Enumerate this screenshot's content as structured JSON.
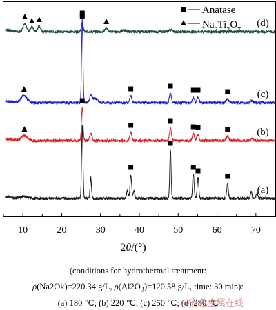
{
  "chart_data": {
    "type": "line",
    "title": "",
    "xlabel": "2θ/(°)",
    "ylabel": "",
    "xlim": [
      5,
      75
    ],
    "xticks": [
      10,
      20,
      30,
      40,
      50,
      60,
      70
    ],
    "yticks_shown": false,
    "legend": {
      "placement": "top-right",
      "entries": [
        {
          "marker": "square",
          "label": "Anatase"
        },
        {
          "marker": "triangle",
          "label": "Na2Ti3O7"
        }
      ]
    },
    "series": [
      {
        "name": "(d)",
        "color": "#1e4d45",
        "offset": 268,
        "noise": 2,
        "peaks": [
          [
            10.5,
            12,
            0.45,
            "triangle"
          ],
          [
            12.3,
            6,
            0.4,
            "triangle"
          ],
          [
            14.2,
            8,
            0.4,
            "triangle"
          ],
          [
            25.3,
            12,
            0.25,
            "square"
          ],
          [
            31.5,
            5,
            0.4,
            "triangle"
          ],
          [
            36.0,
            2,
            0.5,
            null
          ],
          [
            48.0,
            3,
            0.4,
            null
          ]
        ],
        "markers": [
          [
            10.5,
            "triangle"
          ],
          [
            12.3,
            "triangle"
          ],
          [
            14.2,
            "triangle"
          ],
          [
            25.3,
            "square"
          ],
          [
            31.5,
            "triangle"
          ]
        ]
      },
      {
        "name": "(c)",
        "color": "#2222cc",
        "offset": 165,
        "noise": 2,
        "peaks": [
          [
            10.3,
            10,
            0.8,
            null
          ],
          [
            25.3,
            120,
            0.18,
            null
          ],
          [
            27.5,
            8,
            0.3,
            null
          ],
          [
            28.5,
            6,
            0.8,
            null
          ],
          [
            37.8,
            10,
            0.25,
            null
          ],
          [
            48.0,
            14,
            0.25,
            null
          ],
          [
            53.9,
            8,
            0.25,
            null
          ],
          [
            55.1,
            8,
            0.25,
            null
          ],
          [
            62.7,
            6,
            0.3,
            null
          ],
          [
            69.0,
            3,
            0.3,
            null
          ]
        ],
        "markers": [
          [
            10.3,
            "triangle"
          ],
          [
            25.3,
            "square"
          ],
          [
            37.8,
            "square"
          ],
          [
            48.0,
            "square"
          ],
          [
            53.9,
            "square"
          ],
          [
            55.1,
            "square"
          ],
          [
            62.7,
            "square"
          ]
        ]
      },
      {
        "name": "(b)",
        "color": "#e02020",
        "offset": 110,
        "noise": 2,
        "peaks": [
          [
            10.4,
            7,
            0.8,
            null
          ],
          [
            25.3,
            48,
            0.2,
            null
          ],
          [
            27.5,
            10,
            0.3,
            null
          ],
          [
            37.8,
            12,
            0.25,
            null
          ],
          [
            48.0,
            18,
            0.25,
            null
          ],
          [
            53.9,
            10,
            0.25,
            null
          ],
          [
            55.1,
            9,
            0.25,
            null
          ],
          [
            62.7,
            6,
            0.3,
            null
          ],
          [
            69.0,
            3,
            0.3,
            null
          ]
        ],
        "markers": [
          [
            10.4,
            "triangle"
          ],
          [
            25.3,
            "square"
          ],
          [
            37.8,
            "square"
          ],
          [
            48.0,
            "square"
          ],
          [
            53.9,
            "square"
          ],
          [
            55.1,
            "square"
          ],
          [
            62.7,
            "square"
          ]
        ]
      },
      {
        "name": "(a)",
        "color": "#1a1a1a",
        "offset": 26,
        "noise": 2,
        "peaks": [
          [
            10.4,
            3,
            0.8,
            null
          ],
          [
            25.3,
            105,
            0.18,
            null
          ],
          [
            27.5,
            30,
            0.18,
            null
          ],
          [
            36.9,
            12,
            0.2,
            null
          ],
          [
            37.8,
            35,
            0.2,
            null
          ],
          [
            38.6,
            12,
            0.2,
            null
          ],
          [
            48.0,
            70,
            0.18,
            null
          ],
          [
            53.9,
            35,
            0.2,
            null
          ],
          [
            55.1,
            30,
            0.2,
            null
          ],
          [
            62.7,
            22,
            0.2,
            null
          ],
          [
            68.8,
            10,
            0.2,
            null
          ],
          [
            70.3,
            9,
            0.2,
            null
          ]
        ],
        "markers": [
          [
            37.8,
            "square"
          ],
          [
            48.0,
            "square"
          ],
          [
            53.9,
            "square"
          ],
          [
            55.1,
            "square"
          ],
          [
            62.7,
            "square"
          ]
        ]
      }
    ]
  },
  "caption": {
    "title": "(conditions for hydrothermal treatment:",
    "params": "ρ(Na2Ok)=220.34  g/L,  ρ(Al2O3)=120.58  g/L,  time:  30  min):",
    "temps": "(a) 180 ℃; (b) 220 ℃; (c) 250 ℃; (d) 280 ℃"
  },
  "watermark": "@有色金属在线"
}
